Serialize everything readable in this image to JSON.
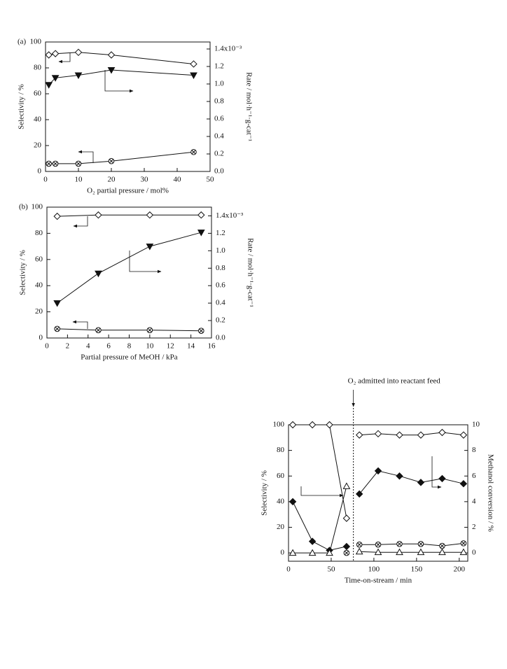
{
  "chart_data": [
    {
      "type": "line",
      "panel_label": "(a)",
      "xlabel": "O₂ partial pressure / mol%",
      "ylabel": "Selectivity / %",
      "y2label": "Rate / mol·h⁻¹·g-cat⁻¹",
      "xlim": [
        0,
        50
      ],
      "xticks": [
        0,
        10,
        20,
        30,
        40,
        50
      ],
      "ylim": [
        0,
        100
      ],
      "yticks": [
        0,
        20,
        40,
        60,
        80,
        100
      ],
      "y2lim": [
        0,
        1.48
      ],
      "y2ticks": [
        {
          "value": 0,
          "label": "0.0"
        },
        0.2,
        0.4,
        0.6,
        0.8,
        {
          "value": 1,
          "label": "1.0"
        },
        1.2,
        {
          "value": 1.4,
          "label": "1.4x10⁻³"
        }
      ],
      "x": [
        1,
        3,
        10,
        20,
        45
      ],
      "series": [
        {
          "marker": "diamond-open",
          "color": "#111111",
          "values": [
            90,
            91,
            92,
            90,
            83
          ]
        },
        {
          "marker": "triangle-down-filled",
          "color": "#111111",
          "axis": "y2",
          "values": [
            0.99,
            1.07,
            1.1,
            1.16,
            1.1
          ]
        },
        {
          "marker": "circle-x",
          "color": "#111111",
          "values": [
            6,
            6,
            6,
            8,
            15
          ]
        }
      ]
    },
    {
      "type": "line",
      "panel_label": "(b)",
      "xlabel": "Partial pressure of MeOH / kPa",
      "ylabel": "Selectivity / %",
      "y2label": "Rate / mol·h⁻¹·g-cat⁻¹",
      "xlim": [
        0,
        16
      ],
      "xticks": [
        0,
        2,
        4,
        6,
        8,
        10,
        12,
        14,
        16
      ],
      "ylim": [
        0,
        100
      ],
      "yticks": [
        0,
        20,
        40,
        60,
        80,
        100
      ],
      "y2lim": [
        0,
        1.5
      ],
      "y2ticks": [
        {
          "value": 0,
          "label": "0.0"
        },
        0.2,
        0.4,
        0.6,
        0.8,
        {
          "value": 1,
          "label": "1.0"
        },
        1.2,
        {
          "value": 1.4,
          "label": "1.4x10⁻³"
        }
      ],
      "x": [
        1,
        5,
        10,
        15
      ],
      "series": [
        {
          "marker": "diamond-open",
          "color": "#111111",
          "values": [
            93,
            94,
            94,
            94
          ]
        },
        {
          "marker": "triangle-down-filled",
          "color": "#111111",
          "axis": "y2",
          "values": [
            0.4,
            0.74,
            1.05,
            1.21
          ]
        },
        {
          "marker": "circle-x",
          "color": "#111111",
          "values": [
            7,
            6,
            6,
            5.5
          ]
        }
      ]
    },
    {
      "type": "line",
      "xlabel": "Time-on-stream / min",
      "ylabel": "Selectivity / %",
      "y2label": "Methanol conversion / %",
      "annotation": {
        "text": "O₂ admitted into reactant feed",
        "x": 76
      },
      "xlim": [
        0,
        210
      ],
      "xticks": [
        0,
        50,
        100,
        150,
        200
      ],
      "ylim": [
        -6.5,
        100
      ],
      "yticks": [
        0,
        20,
        40,
        60,
        80,
        100
      ],
      "y2lim": [
        -0.65,
        10
      ],
      "y2ticks": [
        0,
        2,
        4,
        6,
        8,
        10
      ],
      "x": [
        5,
        28,
        48,
        68,
        null,
        83,
        105,
        130,
        155,
        180,
        205
      ],
      "series": [
        {
          "marker": "diamond-open",
          "color": "#111111",
          "values": [
            100,
            100,
            100,
            27,
            null,
            92,
            93,
            92,
            92,
            94,
            92
          ]
        },
        {
          "marker": "diamond-filled",
          "color": "#111111",
          "axis": "y2",
          "values": [
            4.0,
            0.9,
            0.2,
            0.5,
            null,
            4.6,
            6.4,
            6.0,
            5.5,
            5.8,
            5.4
          ]
        },
        {
          "marker": "circle-x",
          "color": "#111111",
          "values": [
            null,
            null,
            null,
            0,
            null,
            6.5,
            6.5,
            7,
            7,
            5.5,
            7.5
          ]
        },
        {
          "marker": "triangle-open",
          "color": "#111111",
          "values": [
            0,
            0,
            0,
            52,
            null,
            1,
            0.5,
            0.5,
            0.5,
            0.5,
            0.5
          ]
        }
      ]
    }
  ]
}
